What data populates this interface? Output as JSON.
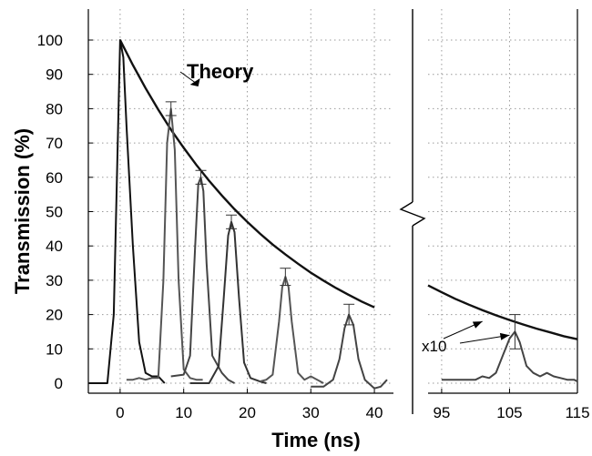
{
  "chart_data": {
    "type": "line",
    "ylabel": "Transmission (%)",
    "xlabel": "Time (ns)",
    "ylim": [
      -2,
      105
    ],
    "yticks": [
      0,
      10,
      20,
      30,
      40,
      50,
      60,
      70,
      80,
      90,
      100
    ],
    "grid": true,
    "panels": [
      {
        "name": "left",
        "xlim": [
          -5,
          43
        ],
        "xticks": [
          0,
          10,
          20,
          30,
          40
        ]
      },
      {
        "name": "right",
        "xlim": [
          93,
          115
        ],
        "xticks": [
          95,
          105,
          115
        ]
      }
    ],
    "annotations": [
      {
        "text": "Theory",
        "panel": "left",
        "points_to": [
          11,
          87
        ]
      },
      {
        "text": "x10",
        "panel": "right",
        "points_to": [
          [
            101,
            18
          ],
          [
            105,
            14
          ]
        ]
      }
    ],
    "theory": {
      "description_label": "Theory",
      "left": {
        "x": [
          0,
          2,
          4,
          6,
          8,
          10,
          12,
          14,
          16,
          18,
          20,
          22,
          24,
          26,
          28,
          30,
          32,
          34,
          36,
          38,
          40
        ],
        "y": [
          100,
          92.7,
          86.0,
          79.7,
          73.9,
          68.6,
          63.6,
          59.0,
          54.7,
          50.7,
          47.0,
          43.6,
          40.4,
          37.5,
          34.8,
          32.2,
          29.9,
          27.7,
          25.7,
          23.8,
          22.1
        ]
      },
      "right": {
        "x": [
          93,
          95,
          97,
          99,
          101,
          103,
          105,
          107,
          109,
          111,
          113,
          115
        ],
        "y": [
          28.5,
          26.5,
          24.6,
          22.9,
          21.3,
          19.8,
          18.4,
          17.1,
          15.9,
          14.8,
          13.7,
          12.8
        ]
      }
    },
    "series": [
      {
        "panel": "left",
        "color": "#111111",
        "x": [
          -5,
          -2,
          -1,
          -0.5,
          0,
          0.5,
          1,
          2,
          3,
          4,
          5,
          6,
          7
        ],
        "y": [
          0,
          0,
          20,
          60,
          100,
          95,
          75,
          40,
          12,
          3,
          2,
          2,
          0
        ]
      },
      {
        "panel": "left",
        "color": "#555555",
        "errorbar": {
          "x": 8,
          "y": 80,
          "err": 2
        },
        "x": [
          1,
          2,
          3,
          4,
          5,
          6,
          6.8,
          7.4,
          8,
          8.6,
          9.2,
          10,
          11,
          12,
          13
        ],
        "y": [
          1,
          1,
          1.5,
          1,
          1.5,
          1.5,
          30,
          70,
          80,
          68,
          30,
          4,
          1.5,
          1,
          1
        ]
      },
      {
        "panel": "left",
        "color": "#444444",
        "errorbar": {
          "x": 12.7,
          "y": 60,
          "err": 2
        },
        "x": [
          8,
          10,
          11,
          11.8,
          12.3,
          12.7,
          13.1,
          13.6,
          14.5,
          16,
          17,
          18
        ],
        "y": [
          2,
          2.5,
          8,
          40,
          58,
          60,
          56,
          35,
          8,
          3,
          1,
          0
        ]
      },
      {
        "panel": "left",
        "color": "#333333",
        "errorbar": {
          "x": 17.5,
          "y": 47,
          "err": 2
        },
        "x": [
          11,
          14,
          15.5,
          16.3,
          17,
          17.5,
          18,
          18.7,
          19.5,
          20.5,
          22,
          23
        ],
        "y": [
          0,
          0,
          5,
          25,
          43,
          47,
          44,
          25,
          6,
          1.5,
          0.5,
          0
        ]
      },
      {
        "panel": "left",
        "color": "#555555",
        "errorbar": {
          "x": 26,
          "y": 31,
          "err": 2.5
        },
        "x": [
          22,
          23,
          24,
          25,
          25.5,
          26,
          26.5,
          27,
          28,
          29,
          30,
          31,
          32
        ],
        "y": [
          0.5,
          1,
          2.5,
          18,
          28,
          31,
          28,
          18,
          3,
          1,
          2,
          1,
          0
        ]
      },
      {
        "panel": "left",
        "color": "#444444",
        "errorbar": {
          "x": 36,
          "y": 20,
          "err": 3
        },
        "x": [
          30,
          32,
          33.5,
          34.5,
          35.3,
          36,
          36.7,
          37.5,
          38.5,
          40,
          41,
          42
        ],
        "y": [
          -1,
          -1,
          1,
          7,
          16,
          20,
          17,
          7,
          1,
          -1.5,
          -1,
          1
        ]
      },
      {
        "panel": "right",
        "color": "#444444",
        "errorbar": {
          "x": 105.8,
          "y": 15,
          "err": 5
        },
        "x": [
          95,
          98,
          100,
          101,
          102,
          103,
          104,
          105,
          105.8,
          106.5,
          107.5,
          108.5,
          109.5,
          110.5,
          111.5,
          112.5,
          113.5,
          114.5,
          115
        ],
        "y": [
          1,
          1,
          1,
          2,
          1.5,
          3,
          8,
          13,
          15,
          12,
          5,
          3,
          2,
          3,
          2,
          1.5,
          1,
          1,
          0.5
        ]
      }
    ]
  }
}
